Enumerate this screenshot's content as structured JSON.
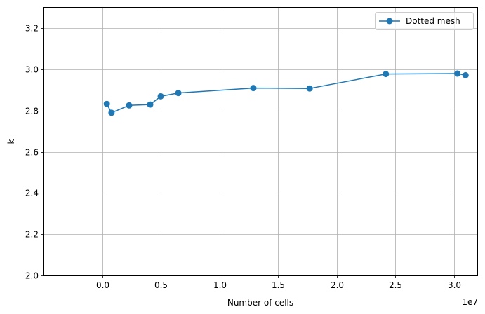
{
  "chart_data": {
    "type": "line",
    "title": "",
    "xlabel": "Number of cells",
    "ylabel": "k",
    "x_offset_label": "1e7",
    "xlim": [
      -5000000,
      32000000
    ],
    "ylim": [
      2.0,
      3.3
    ],
    "x_ticks": [
      0,
      5000000,
      10000000,
      15000000,
      20000000,
      25000000,
      30000000
    ],
    "x_tick_labels": [
      "0.0",
      "0.5",
      "1.0",
      "1.5",
      "2.0",
      "2.5",
      "3.0"
    ],
    "y_ticks": [
      2.0,
      2.2,
      2.4,
      2.6,
      2.8,
      3.0,
      3.2
    ],
    "y_tick_labels": [
      "2.0",
      "2.2",
      "2.4",
      "2.6",
      "2.8",
      "3.0",
      "3.2"
    ],
    "grid": true,
    "legend_position": "top-right",
    "series": [
      {
        "name": "Dotted mesh",
        "color": "#1f77b4",
        "marker": "circle",
        "x": [
          400000,
          800000,
          2300000,
          4100000,
          5000000,
          6500000,
          12900000,
          17700000,
          24200000,
          30300000,
          31000000
        ],
        "y": [
          2.833,
          2.79,
          2.826,
          2.83,
          2.87,
          2.886,
          2.91,
          2.908,
          2.978,
          2.98,
          2.972
        ]
      }
    ]
  }
}
